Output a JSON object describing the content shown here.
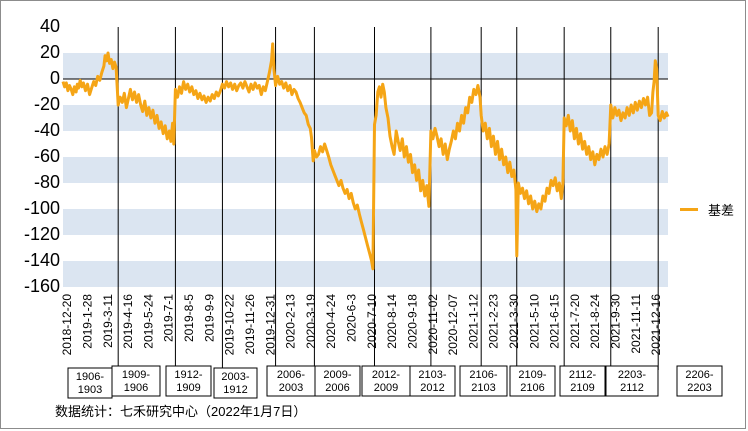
{
  "source_note": "数据统计：七禾研究中心（2022年1月7日）",
  "colors": {
    "line": "#f5a516",
    "band": "#dbe5f1",
    "divider": "#000000"
  },
  "chart_data": {
    "type": "line",
    "ylim": [
      -160,
      40
    ],
    "yticks": [
      40,
      20,
      0,
      -20,
      -40,
      -60,
      -80,
      -100,
      -120,
      -140,
      -160
    ],
    "grid": "alternating horizontal bands",
    "legend_position": "right",
    "xtick_labels": [
      "2018-12-20",
      "2019-1-28",
      "2019-3-11",
      "2019-4-16",
      "2019-5-24",
      "2019-7-1",
      "2019-8-5",
      "2019-9-9",
      "2019-10-22",
      "2019-11-26",
      "2019-12-31",
      "2020-2-13",
      "2020-3-19",
      "2020-4-24",
      "2020-6-3",
      "2020-7-10",
      "2020-8-14",
      "2020-9-18",
      "2020-11-02",
      "2020-12-07",
      "2021-1-12",
      "2021-2-23",
      "2021-3-30",
      "2021-5-10",
      "2021-6-15",
      "2021-7-20",
      "2021-8-24",
      "2021-9-30",
      "2021-11-11",
      "2021-12-16"
    ],
    "contract_labels": [
      "1906-1903",
      "1909-1906",
      "1912-1909",
      "2003-1912",
      "2006-2003",
      "2009-2006",
      "2012-2009",
      "2103-2012",
      "2106-2103",
      "2109-2106",
      "2112-2109",
      "2203-2112",
      "2206-2203"
    ],
    "series": [
      {
        "name": "基差",
        "points": [
          [
            0,
            -2
          ],
          [
            0.4,
            -6
          ],
          [
            0.8,
            -3
          ],
          [
            1.2,
            -9
          ],
          [
            1.6,
            -5
          ],
          [
            2,
            -8
          ],
          [
            2.4,
            -12
          ],
          [
            2.8,
            -6
          ],
          [
            3.2,
            -10
          ],
          [
            3.5,
            -4
          ],
          [
            3.8,
            -7
          ],
          [
            4.2,
            -1
          ],
          [
            4.6,
            -6
          ],
          [
            5,
            -3
          ],
          [
            5.5,
            -9
          ],
          [
            6,
            -4
          ],
          [
            6.5,
            -12
          ],
          [
            7,
            -7
          ],
          [
            7.5,
            -2
          ],
          [
            8,
            -5
          ],
          [
            8.5,
            2
          ],
          [
            9,
            -1
          ],
          [
            9.5,
            5
          ],
          [
            10,
            10
          ],
          [
            10.3,
            18
          ],
          [
            10.7,
            14
          ],
          [
            11,
            20
          ],
          [
            11.4,
            12
          ],
          [
            11.8,
            15
          ],
          [
            12.2,
            8
          ],
          [
            12.6,
            13
          ],
          [
            13,
            9
          ],
          [
            13.5,
            -20
          ],
          [
            14,
            -14
          ],
          [
            14.5,
            -18
          ],
          [
            15,
            -11
          ],
          [
            15.5,
            -22
          ],
          [
            16,
            -15
          ],
          [
            16.5,
            -8
          ],
          [
            17,
            -16
          ],
          [
            17.5,
            -10
          ],
          [
            18,
            -18
          ],
          [
            18.5,
            -12
          ],
          [
            19,
            -20
          ],
          [
            19.5,
            -25
          ],
          [
            20,
            -17
          ],
          [
            20.5,
            -28
          ],
          [
            21,
            -22
          ],
          [
            21.5,
            -30
          ],
          [
            22,
            -24
          ],
          [
            22.5,
            -34
          ],
          [
            23,
            -28
          ],
          [
            23.5,
            -38
          ],
          [
            24,
            -33
          ],
          [
            24.5,
            -42
          ],
          [
            25,
            -36
          ],
          [
            25.5,
            -46
          ],
          [
            26,
            -40
          ],
          [
            26.4,
            -48
          ],
          [
            26.8,
            -34
          ],
          [
            27.1,
            -50
          ],
          [
            27.5,
            -8
          ],
          [
            28,
            -14
          ],
          [
            28.5,
            -6
          ],
          [
            29,
            -11
          ],
          [
            29.5,
            -2
          ],
          [
            30,
            -8
          ],
          [
            30.5,
            -4
          ],
          [
            31,
            -10
          ],
          [
            31.5,
            -6
          ],
          [
            32,
            -12
          ],
          [
            32.5,
            -9
          ],
          [
            33,
            -15
          ],
          [
            33.5,
            -11
          ],
          [
            34,
            -16
          ],
          [
            34.5,
            -13
          ],
          [
            35,
            -18
          ],
          [
            35.5,
            -14
          ],
          [
            36,
            -17
          ],
          [
            36.5,
            -12
          ],
          [
            37,
            -15
          ],
          [
            37.5,
            -10
          ],
          [
            38,
            -13
          ],
          [
            38.5,
            -9
          ],
          [
            39,
            -4
          ],
          [
            39.5,
            -7
          ],
          [
            40,
            -2
          ],
          [
            40.5,
            -6
          ],
          [
            41,
            -3
          ],
          [
            41.5,
            -8
          ],
          [
            42,
            -4
          ],
          [
            42.5,
            -9
          ],
          [
            43,
            -5
          ],
          [
            43.5,
            -3
          ],
          [
            44,
            -7
          ],
          [
            44.5,
            -2
          ],
          [
            45,
            -6
          ],
          [
            45.5,
            -10
          ],
          [
            46,
            -4
          ],
          [
            46.5,
            -8
          ],
          [
            47,
            -3
          ],
          [
            47.5,
            -7
          ],
          [
            48,
            -5
          ],
          [
            48.5,
            -12
          ],
          [
            49,
            -6
          ],
          [
            49.5,
            -9
          ],
          [
            50,
            -2
          ],
          [
            50.5,
            5
          ],
          [
            51,
            14
          ],
          [
            51.3,
            27
          ],
          [
            51.6,
            8
          ],
          [
            52,
            -5
          ],
          [
            52.5,
            2
          ],
          [
            53,
            -4
          ],
          [
            53.5,
            -2
          ],
          [
            54,
            -7
          ],
          [
            54.5,
            -3
          ],
          [
            55,
            -9
          ],
          [
            55.5,
            -5
          ],
          [
            56,
            -12
          ],
          [
            56.5,
            -8
          ],
          [
            57,
            -10
          ],
          [
            57.5,
            -15
          ],
          [
            58,
            -18
          ],
          [
            58.5,
            -22
          ],
          [
            59,
            -26
          ],
          [
            59.5,
            -28
          ],
          [
            60,
            -35
          ],
          [
            60.5,
            -38
          ],
          [
            60.8,
            -45
          ],
          [
            61.2,
            -63
          ],
          [
            61.5,
            -55
          ],
          [
            62,
            -60
          ],
          [
            62.5,
            -58
          ],
          [
            63,
            -52
          ],
          [
            63.5,
            -56
          ],
          [
            64,
            -50
          ],
          [
            64.5,
            -55
          ],
          [
            65,
            -60
          ],
          [
            65.5,
            -66
          ],
          [
            66,
            -70
          ],
          [
            66.5,
            -74
          ],
          [
            67,
            -78
          ],
          [
            67.5,
            -82
          ],
          [
            68,
            -78
          ],
          [
            68.5,
            -84
          ],
          [
            69,
            -88
          ],
          [
            69.5,
            -85
          ],
          [
            70,
            -92
          ],
          [
            70.5,
            -88
          ],
          [
            71,
            -95
          ],
          [
            71.5,
            -100
          ],
          [
            72,
            -97
          ],
          [
            72.5,
            -104
          ],
          [
            73,
            -110
          ],
          [
            73.5,
            -116
          ],
          [
            74,
            -122
          ],
          [
            74.5,
            -128
          ],
          [
            75,
            -134
          ],
          [
            75.5,
            -140
          ],
          [
            75.8,
            -146
          ],
          [
            76.2,
            -35
          ],
          [
            76.6,
            -28
          ],
          [
            77,
            -10
          ],
          [
            77.4,
            -6
          ],
          [
            77.8,
            -14
          ],
          [
            78.2,
            -4
          ],
          [
            78.6,
            -10
          ],
          [
            79,
            -22
          ],
          [
            79.5,
            -30
          ],
          [
            80,
            -44
          ],
          [
            80.5,
            -52
          ],
          [
            81,
            -58
          ],
          [
            81.5,
            -40
          ],
          [
            82,
            -48
          ],
          [
            82.5,
            -55
          ],
          [
            83,
            -46
          ],
          [
            83.5,
            -60
          ],
          [
            84,
            -52
          ],
          [
            84.5,
            -64
          ],
          [
            85,
            -58
          ],
          [
            85.5,
            -72
          ],
          [
            86,
            -66
          ],
          [
            86.5,
            -78
          ],
          [
            87,
            -70
          ],
          [
            87.5,
            -86
          ],
          [
            88,
            -78
          ],
          [
            88.5,
            -90
          ],
          [
            89,
            -82
          ],
          [
            89.5,
            -98
          ],
          [
            90,
            -40
          ],
          [
            90.5,
            -46
          ],
          [
            91,
            -38
          ],
          [
            91.5,
            -44
          ],
          [
            92,
            -52
          ],
          [
            92.5,
            -46
          ],
          [
            93,
            -58
          ],
          [
            93.5,
            -50
          ],
          [
            94,
            -62
          ],
          [
            94.5,
            -54
          ],
          [
            95,
            -48
          ],
          [
            95.5,
            -40
          ],
          [
            96,
            -46
          ],
          [
            96.5,
            -34
          ],
          [
            97,
            -40
          ],
          [
            97.5,
            -28
          ],
          [
            98,
            -34
          ],
          [
            98.5,
            -22
          ],
          [
            99,
            -26
          ],
          [
            99.5,
            -14
          ],
          [
            100,
            -18
          ],
          [
            100.5,
            -8
          ],
          [
            101,
            -12
          ],
          [
            101.5,
            -5
          ],
          [
            102,
            -14
          ],
          [
            102.3,
            -28
          ],
          [
            102.8,
            -40
          ],
          [
            103.3,
            -34
          ],
          [
            103.8,
            -46
          ],
          [
            104.3,
            -38
          ],
          [
            104.8,
            -52
          ],
          [
            105.3,
            -44
          ],
          [
            105.8,
            -58
          ],
          [
            106.3,
            -48
          ],
          [
            106.8,
            -62
          ],
          [
            107.3,
            -54
          ],
          [
            107.8,
            -66
          ],
          [
            108.3,
            -60
          ],
          [
            108.8,
            -72
          ],
          [
            109.3,
            -64
          ],
          [
            109.8,
            -75
          ],
          [
            110.3,
            -70
          ],
          [
            110.8,
            -85
          ],
          [
            111,
            -136
          ],
          [
            111.4,
            -80
          ],
          [
            111.9,
            -88
          ],
          [
            112.4,
            -84
          ],
          [
            112.9,
            -92
          ],
          [
            113.4,
            -86
          ],
          [
            113.9,
            -96
          ],
          [
            114.4,
            -90
          ],
          [
            114.9,
            -100
          ],
          [
            115.4,
            -94
          ],
          [
            115.9,
            -102
          ],
          [
            116.4,
            -96
          ],
          [
            116.9,
            -100
          ],
          [
            117.4,
            -90
          ],
          [
            117.9,
            -94
          ],
          [
            118.4,
            -84
          ],
          [
            118.9,
            -88
          ],
          [
            119.4,
            -78
          ],
          [
            119.9,
            -82
          ],
          [
            120.4,
            -76
          ],
          [
            120.9,
            -86
          ],
          [
            121.4,
            -80
          ],
          [
            121.9,
            -92
          ],
          [
            122.3,
            -80
          ],
          [
            122.6,
            -30
          ],
          [
            123.1,
            -36
          ],
          [
            123.6,
            -28
          ],
          [
            124.1,
            -40
          ],
          [
            124.6,
            -32
          ],
          [
            125.1,
            -46
          ],
          [
            125.6,
            -38
          ],
          [
            126.1,
            -50
          ],
          [
            126.6,
            -42
          ],
          [
            127.1,
            -54
          ],
          [
            127.6,
            -48
          ],
          [
            128.1,
            -58
          ],
          [
            128.6,
            -52
          ],
          [
            129.1,
            -62
          ],
          [
            129.6,
            -56
          ],
          [
            130.1,
            -66
          ],
          [
            130.6,
            -58
          ],
          [
            131.1,
            -62
          ],
          [
            131.6,
            -54
          ],
          [
            132.1,
            -60
          ],
          [
            132.6,
            -52
          ],
          [
            133.1,
            -58
          ],
          [
            133.6,
            -50
          ],
          [
            134,
            -20
          ],
          [
            134.5,
            -30
          ],
          [
            135,
            -22
          ],
          [
            135.5,
            -28
          ],
          [
            136,
            -24
          ],
          [
            136.5,
            -32
          ],
          [
            137,
            -26
          ],
          [
            137.5,
            -30
          ],
          [
            138,
            -22
          ],
          [
            138.5,
            -28
          ],
          [
            139,
            -20
          ],
          [
            139.5,
            -26
          ],
          [
            140,
            -18
          ],
          [
            140.5,
            -24
          ],
          [
            141,
            -17
          ],
          [
            141.5,
            -22
          ],
          [
            142,
            -15
          ],
          [
            142.5,
            -20
          ],
          [
            143,
            -14
          ],
          [
            143.5,
            -28
          ],
          [
            144,
            -26
          ],
          [
            144.3,
            -10
          ],
          [
            144.6,
            -2
          ],
          [
            144.9,
            14
          ],
          [
            145.2,
            8
          ],
          [
            145.6,
            -28
          ],
          [
            146.1,
            -32
          ],
          [
            146.6,
            -25
          ],
          [
            147.1,
            -30
          ],
          [
            147.6,
            -26
          ],
          [
            148,
            -29
          ]
        ]
      }
    ]
  }
}
